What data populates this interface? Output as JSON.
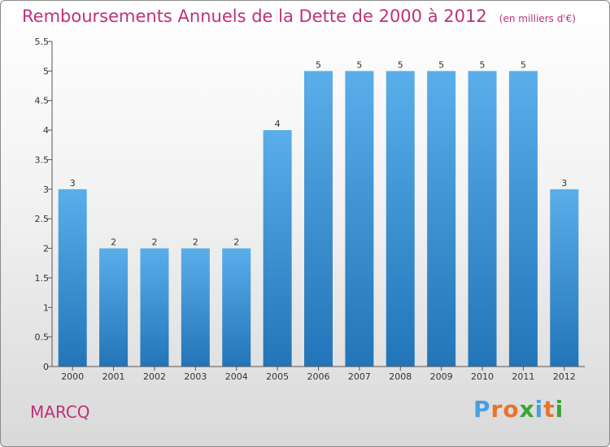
{
  "chart_data": {
    "type": "bar",
    "title": "Remboursements Annuels de la Dette de 2000 à 2012",
    "subtitle": "(en milliers d'€)",
    "categories": [
      "2000",
      "2001",
      "2002",
      "2003",
      "2004",
      "2005",
      "2006",
      "2007",
      "2008",
      "2009",
      "2010",
      "2011",
      "2012"
    ],
    "values": [
      3,
      2,
      2,
      2,
      2,
      4,
      5,
      5,
      5,
      5,
      5,
      5,
      3
    ],
    "ylim": [
      0,
      5.5
    ],
    "yticks": [
      "0",
      "0.5",
      "1",
      "1.5",
      "2",
      "2.5",
      "3",
      "3.5",
      "4",
      "4.5",
      "5",
      "5.5"
    ],
    "grid": false,
    "bar_color": "#4a9fe0"
  },
  "footer": {
    "city": "MARCQ",
    "logo_letters": [
      "P",
      "r",
      "o",
      "x",
      "i",
      "t",
      "i"
    ],
    "logo_colors": [
      "#4a9fe0",
      "#e8742a",
      "#e8742a",
      "#3aa635",
      "#4a9fe0",
      "#e8742a",
      "#3aa635"
    ]
  }
}
